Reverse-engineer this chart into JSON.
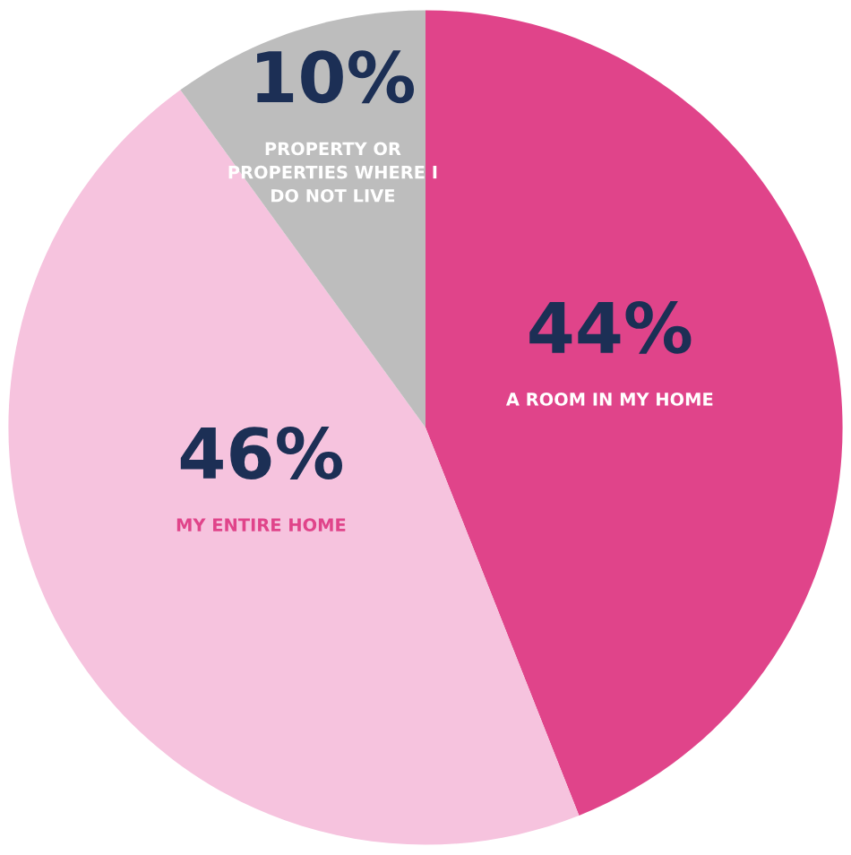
{
  "chart_data": {
    "type": "pie",
    "categories": [
      "A ROOM IN MY HOME",
      "MY ENTIRE HOME",
      "PROPERTY OR\nPROPERTIES WHERE I\nDO NOT LIVE"
    ],
    "values": [
      44,
      46,
      10
    ],
    "value_labels": [
      "44%",
      "46%",
      "10%"
    ],
    "colors": [
      "#e0448a",
      "#f6c3de",
      "#bdbdbd"
    ]
  }
}
